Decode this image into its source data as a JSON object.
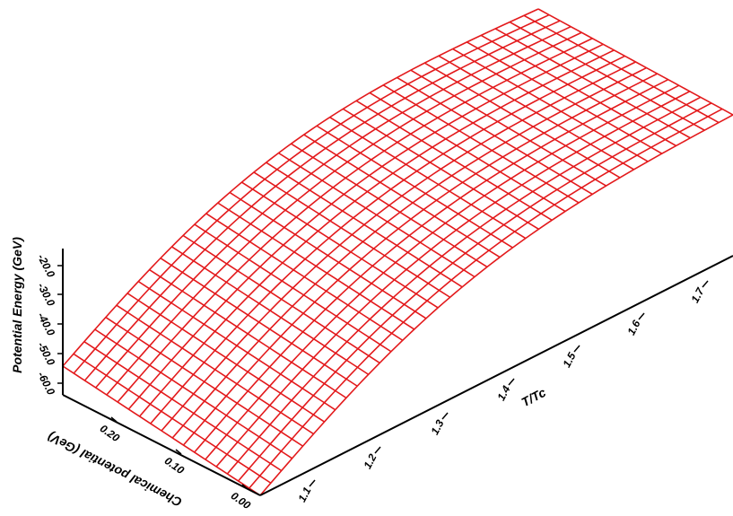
{
  "chart_data": {
    "type": "surface",
    "title": "",
    "zlabel": "Potential Energy (GeV)",
    "xlabel": "T/Tc",
    "ylabel": "Chemical potential (GeV)",
    "x_ticks": [
      "1.1",
      "1.2",
      "1.3",
      "1.4",
      "1.5",
      "1.6",
      "1.7"
    ],
    "y_ticks": [
      "0.00",
      "0.10",
      "0.20"
    ],
    "z_ticks": [
      "-20.0",
      "-30.0",
      "-40.0",
      "-50.0",
      "-60.0"
    ],
    "x_range": [
      1.0,
      1.8
    ],
    "y_range": [
      0.0,
      0.3
    ],
    "z_range": [
      -65,
      -15
    ],
    "grid_x_lines": 38,
    "grid_y_lines": 18,
    "surface_color": "#e31a1c",
    "surface_samples": [
      {
        "T_over_Tc": 1.0,
        "mu": 0.0,
        "potential": -64
      },
      {
        "T_over_Tc": 1.0,
        "mu": 0.3,
        "potential": -60
      },
      {
        "T_over_Tc": 1.4,
        "mu": 0.0,
        "potential": -36
      },
      {
        "T_over_Tc": 1.8,
        "mu": 0.0,
        "potential": -22
      },
      {
        "T_over_Tc": 1.8,
        "mu": 0.3,
        "potential": -17
      }
    ]
  }
}
